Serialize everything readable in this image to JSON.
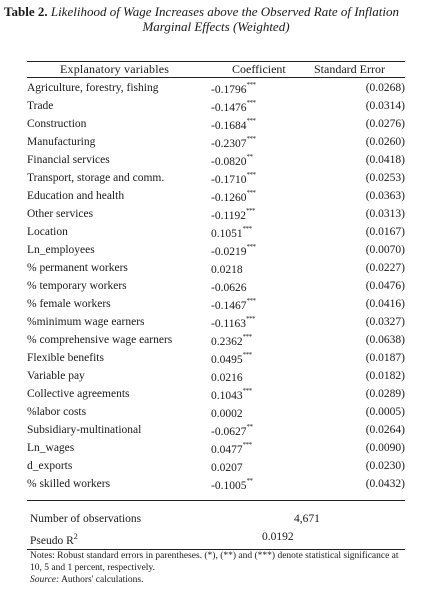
{
  "caption": {
    "label": "Table 2.",
    "title_line1": "Likelihood of Wage Increases above the Observed Rate of Inflation",
    "title_line2": "Marginal Effects (Weighted)"
  },
  "headers": {
    "variable": "Explanatory variables",
    "coefficient": "Coefficient",
    "std_error": "Standard Error"
  },
  "rows": [
    {
      "variable": "Agriculture, forestry, fishing",
      "coef": "-0.1796",
      "stars": "***",
      "se": "(0.0268)"
    },
    {
      "variable": "Trade",
      "coef": "-0.1476",
      "stars": "***",
      "se": "(0.0314)"
    },
    {
      "variable": "Construction",
      "coef": "-0.1684",
      "stars": "***",
      "se": "(0.0276)"
    },
    {
      "variable": "Manufacturing",
      "coef": "-0.2307",
      "stars": "***",
      "se": "(0.0260)"
    },
    {
      "variable": "Financial services",
      "coef": "-0.0820",
      "stars": "**",
      "se": "(0.0418)"
    },
    {
      "variable": "Transport, storage and comm.",
      "coef": "-0.1710",
      "stars": "***",
      "se": "(0.0253)"
    },
    {
      "variable": "Education and health",
      "coef": "-0.1260",
      "stars": "***",
      "se": "(0.0363)"
    },
    {
      "variable": "Other services",
      "coef": "-0.1192",
      "stars": "***",
      "se": "(0.0313)"
    },
    {
      "variable": "Location",
      "coef": "0.1051",
      "stars": "***",
      "se": "(0.0167)"
    },
    {
      "variable": "Ln_employees",
      "coef": "-0.0219",
      "stars": "***",
      "se": "(0.0070)"
    },
    {
      "variable": "% permanent workers",
      "coef": "0.0218",
      "stars": "",
      "se": "(0.0227)"
    },
    {
      "variable": "% temporary workers",
      "coef": "-0.0626",
      "stars": "",
      "se": "(0.0476)"
    },
    {
      "variable": "% female workers",
      "coef": "-0.1467",
      "stars": "***",
      "se": "(0.0416)"
    },
    {
      "variable": "%minimum wage earners",
      "coef": "-0.1163",
      "stars": "***",
      "se": "(0.0327)"
    },
    {
      "variable": "% comprehensive wage earners",
      "coef": "0.2362",
      "stars": "***",
      "se": "(0.0638)"
    },
    {
      "variable": "Flexible benefits",
      "coef": "0.0495",
      "stars": "***",
      "se": "(0.0187)"
    },
    {
      "variable": "Variable pay",
      "coef": "0.0216",
      "stars": "",
      "se": "(0.0182)"
    },
    {
      "variable": "Collective agreements",
      "coef": "0.1043",
      "stars": "***",
      "se": "(0.0289)"
    },
    {
      "variable": "%labor costs",
      "coef": "0.0002",
      "stars": "",
      "se": "(0.0005)"
    },
    {
      "variable": "Subsidiary-multinational",
      "coef": "-0.0627",
      "stars": "**",
      "se": "(0.0264)"
    },
    {
      "variable": "Ln_wages",
      "coef": "0.0477",
      "stars": "***",
      "se": "(0.0090)"
    },
    {
      "variable": "d_exports",
      "coef": "0.0207",
      "stars": "",
      "se": "(0.0230)"
    },
    {
      "variable": "% skilled workers",
      "coef": "-0.1005",
      "stars": "**",
      "se": "(0.0432)"
    }
  ],
  "summary": {
    "obs_label": "Number of observations",
    "obs_value": "4,671",
    "pseudo_label": "Pseudo R",
    "pseudo_sup": "2",
    "pseudo_value": "0.0192"
  },
  "notes": {
    "text": "Notes: Robust standard errors in parentheses. (*), (**) and (***) denote statistical significance at 10, 5 and 1 percent, respectively.",
    "source_label": "Source:",
    "source_text": "Authors' calculations."
  }
}
